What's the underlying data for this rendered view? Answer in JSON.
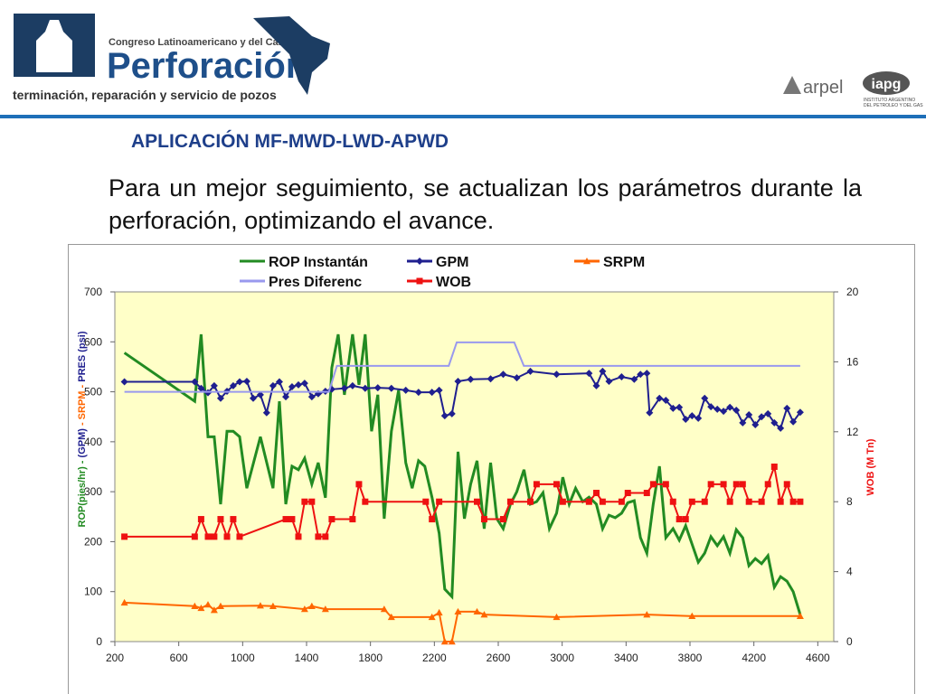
{
  "header": {
    "congress": "Congreso Latinoamericano y del Caribe de",
    "brand": "Perforación",
    "tagline": "terminación, reparación y servicio de pozos",
    "arpel": "arpel",
    "iapg": "iapg",
    "iapg_sub1": "INSTITUTO ARGENTINO",
    "iapg_sub2": "DEL PETROLEO Y DEL GAS"
  },
  "slide": {
    "title": "APLICACIÓN MF-MWD-LWD-APWD",
    "text": "Para un mejor seguimiento, se actualizan los parámetros durante la perforación, optimizando el avance."
  },
  "chart_data": {
    "type": "line",
    "y_label_parts": [
      {
        "text": "ROP(pies/hr) - ",
        "color": "#228b22"
      },
      {
        "text": "(GPM)",
        "color": "#1f1f8f"
      },
      {
        "text": " - SRPM - ",
        "color": "#ff6600"
      },
      {
        "text": "PRES (psi)",
        "color": "#1f1f8f"
      }
    ],
    "y2_label": "WOB (M Tn)",
    "y2_label_color": "#ee1111",
    "xlim": [
      200,
      4700
    ],
    "xticks": [
      200,
      600,
      1000,
      1400,
      1800,
      2200,
      2600,
      3000,
      3400,
      3800,
      4200,
      4600
    ],
    "ylim": [
      0,
      700
    ],
    "yticks": [
      0,
      100,
      200,
      300,
      400,
      500,
      600,
      700
    ],
    "y2lim": [
      0,
      20
    ],
    "y2ticks": [
      0,
      4,
      8,
      12,
      16,
      20
    ],
    "grid": false,
    "series": [
      {
        "name": "ROP Instantán",
        "color": "#228b22",
        "marker": "none",
        "axis": "y",
        "x": [
          260,
          700,
          740,
          783,
          822,
          862,
          902,
          941,
          981,
          1026,
          1111,
          1190,
          1230,
          1270,
          1309,
          1349,
          1388,
          1433,
          1473,
          1518,
          1558,
          1598,
          1637,
          1688,
          1728,
          1767,
          1807,
          1846,
          1886,
          1931,
          1976,
          2021,
          2061,
          2101,
          2140,
          2185,
          2230,
          2265,
          2310,
          2348,
          2388,
          2427,
          2467,
          2512,
          2552,
          2591,
          2631,
          2676,
          2716,
          2761,
          2801,
          2840,
          2880,
          2920,
          2965,
          3004,
          3044,
          3084,
          3129,
          3168,
          3214,
          3253,
          3293,
          3332,
          3372,
          3411,
          3451,
          3490,
          3530,
          3570,
          3609,
          3649,
          3694,
          3733,
          3773,
          3813,
          3852,
          3892,
          3931,
          3971,
          4010,
          4050,
          4090,
          4130,
          4169,
          4209,
          4248,
          4288,
          4328,
          4367,
          4407,
          4446,
          4490
        ],
        "values": [
          578,
          481,
          615,
          410,
          410,
          275,
          421,
          421,
          410,
          307,
          410,
          307,
          481,
          275,
          351,
          344,
          367,
          315,
          358,
          288,
          548,
          615,
          494,
          615,
          514,
          615,
          421,
          494,
          246,
          421,
          503,
          358,
          307,
          362,
          351,
          289,
          217,
          105,
          90,
          380,
          246,
          315,
          362,
          226,
          358,
          246,
          226,
          275,
          300,
          344,
          275,
          280,
          298,
          226,
          257,
          329,
          275,
          307,
          280,
          289,
          275,
          226,
          253,
          248,
          257,
          278,
          282,
          208,
          177,
          275,
          351,
          208,
          226,
          203,
          232,
          195,
          159,
          177,
          210,
          192,
          210,
          177,
          224,
          208,
          152,
          166,
          156,
          172,
          109,
          130,
          121,
          100,
          54
        ]
      },
      {
        "name": "GPM",
        "color": "#1f1f8f",
        "marker": "diamond",
        "axis": "y",
        "x": [
          260,
          700,
          740,
          783,
          822,
          862,
          902,
          941,
          981,
          1026,
          1066,
          1111,
          1150,
          1190,
          1230,
          1270,
          1309,
          1349,
          1388,
          1433,
          1473,
          1518,
          1558,
          1637,
          1688,
          1767,
          1846,
          1931,
          2021,
          2101,
          2185,
          2230,
          2265,
          2310,
          2348,
          2427,
          2552,
          2631,
          2716,
          2801,
          2965,
          3168,
          3214,
          3253,
          3293,
          3372,
          3451,
          3490,
          3530,
          3547,
          3609,
          3649,
          3694,
          3733,
          3773,
          3813,
          3852,
          3892,
          3931,
          3971,
          4010,
          4050,
          4090,
          4130,
          4169,
          4209,
          4248,
          4288,
          4328,
          4367,
          4407,
          4446,
          4490
        ],
        "values": [
          520,
          520,
          507,
          498,
          512,
          487,
          501,
          512,
          520,
          521,
          487,
          494,
          458,
          512,
          520,
          490,
          510,
          514,
          517,
          490,
          496,
          501,
          505,
          507,
          512,
          507,
          508,
          507,
          503,
          499,
          499,
          503,
          452,
          456,
          521,
          525,
          526,
          535,
          528,
          541,
          535,
          537,
          512,
          541,
          521,
          530,
          525,
          535,
          537,
          458,
          487,
          483,
          467,
          469,
          445,
          452,
          447,
          487,
          470,
          465,
          461,
          469,
          463,
          438,
          454,
          434,
          450,
          456,
          438,
          427,
          467,
          440,
          459
        ]
      },
      {
        "name": "SRPM",
        "color": "#ff6600",
        "marker": "triangle",
        "axis": "y",
        "x": [
          260,
          700,
          740,
          783,
          822,
          862,
          1111,
          1190,
          1388,
          1433,
          1518,
          1886,
          1931,
          2185,
          2230,
          2265,
          2310,
          2348,
          2467,
          2512,
          2965,
          3530,
          3813,
          4490
        ],
        "values": [
          78,
          71,
          67,
          74,
          63,
          71,
          72,
          71,
          65,
          71,
          65,
          65,
          49,
          49,
          58,
          0,
          0,
          60,
          60,
          54,
          49,
          54,
          51,
          51
        ]
      },
      {
        "name": "Pres Diferenc",
        "color": "#9999ee",
        "marker": "none",
        "axis": "y",
        "x": [
          260,
          1540,
          1590,
          2290,
          2340,
          2700,
          2760,
          4490
        ],
        "values": [
          500,
          500,
          552,
          552,
          599,
          599,
          552,
          552
        ]
      },
      {
        "name": "WOB",
        "color": "#ee1111",
        "marker": "square",
        "axis": "y2",
        "x": [
          260,
          700,
          740,
          783,
          822,
          862,
          902,
          941,
          981,
          1270,
          1309,
          1349,
          1388,
          1433,
          1473,
          1518,
          1558,
          1688,
          1728,
          1767,
          2146,
          2185,
          2230,
          2467,
          2512,
          2631,
          2676,
          2801,
          2840,
          2965,
          3004,
          3168,
          3214,
          3253,
          3372,
          3411,
          3530,
          3570,
          3649,
          3694,
          3733,
          3773,
          3813,
          3892,
          3931,
          4010,
          4050,
          4090,
          4130,
          4169,
          4248,
          4288,
          4328,
          4367,
          4407,
          4446,
          4490
        ],
        "values": [
          6,
          6,
          7,
          6,
          6,
          7,
          6,
          7,
          6,
          7,
          7,
          6,
          8,
          8,
          6,
          6,
          7,
          7,
          9,
          8,
          8,
          7,
          8,
          8,
          7,
          7,
          8,
          8,
          9,
          9,
          8,
          8,
          8.5,
          8,
          8,
          8.5,
          8.5,
          9,
          9,
          8,
          7,
          7,
          8,
          8,
          9,
          9,
          8,
          9,
          9,
          8,
          8,
          9,
          10,
          8,
          9,
          8,
          8
        ]
      }
    ]
  }
}
